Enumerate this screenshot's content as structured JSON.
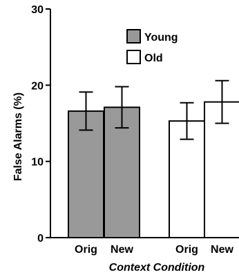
{
  "chart_data": {
    "type": "bar",
    "title": "",
    "xlabel": "Context Condition",
    "ylabel": "False Alarms (%)",
    "ylim": [
      0,
      30
    ],
    "yticks": [
      "0",
      "10",
      "20",
      "30"
    ],
    "grid": false,
    "legend_placement": "top-right",
    "series": [
      {
        "name": "Young",
        "color": "#999999",
        "categories": [
          "Orig",
          "New"
        ],
        "values": [
          16.6,
          17.1
        ],
        "errors": [
          2.5,
          2.7
        ]
      },
      {
        "name": "Old",
        "color": "#ffffff",
        "categories": [
          "Orig",
          "New"
        ],
        "values": [
          15.3,
          17.8
        ],
        "errors": [
          2.4,
          2.8
        ]
      }
    ]
  }
}
